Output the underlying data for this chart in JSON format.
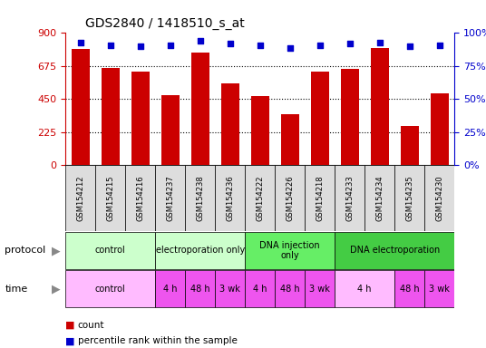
{
  "title": "GDS2840 / 1418510_s_at",
  "samples": [
    "GSM154212",
    "GSM154215",
    "GSM154216",
    "GSM154237",
    "GSM154238",
    "GSM154236",
    "GSM154222",
    "GSM154226",
    "GSM154218",
    "GSM154233",
    "GSM154234",
    "GSM154235",
    "GSM154230"
  ],
  "counts": [
    790,
    660,
    635,
    475,
    770,
    560,
    470,
    350,
    640,
    655,
    800,
    265,
    490
  ],
  "percentiles": [
    93,
    91,
    90,
    91,
    94,
    92,
    91,
    89,
    91,
    92,
    93,
    90,
    91
  ],
  "bar_color": "#cc0000",
  "dot_color": "#0000cc",
  "ylim_left": [
    0,
    900
  ],
  "ylim_right": [
    0,
    100
  ],
  "yticks_left": [
    0,
    225,
    450,
    675,
    900
  ],
  "yticks_right": [
    0,
    25,
    50,
    75,
    100
  ],
  "protocol_groups": [
    {
      "label": "control",
      "start": 0,
      "end": 3,
      "color": "#ccffcc"
    },
    {
      "label": "electroporation only",
      "start": 3,
      "end": 6,
      "color": "#ccffcc"
    },
    {
      "label": "DNA injection\nonly",
      "start": 6,
      "end": 9,
      "color": "#66ee66"
    },
    {
      "label": "DNA electroporation",
      "start": 9,
      "end": 13,
      "color": "#44cc44"
    }
  ],
  "time_groups": [
    {
      "label": "control",
      "start": 0,
      "end": 3,
      "color": "#ffbbff"
    },
    {
      "label": "4 h",
      "start": 3,
      "end": 4,
      "color": "#ee55ee"
    },
    {
      "label": "48 h",
      "start": 4,
      "end": 5,
      "color": "#ee55ee"
    },
    {
      "label": "3 wk",
      "start": 5,
      "end": 6,
      "color": "#ee55ee"
    },
    {
      "label": "4 h",
      "start": 6,
      "end": 7,
      "color": "#ee55ee"
    },
    {
      "label": "48 h",
      "start": 7,
      "end": 8,
      "color": "#ee55ee"
    },
    {
      "label": "3 wk",
      "start": 8,
      "end": 9,
      "color": "#ee55ee"
    },
    {
      "label": "4 h",
      "start": 9,
      "end": 11,
      "color": "#ffbbff"
    },
    {
      "label": "48 h",
      "start": 11,
      "end": 12,
      "color": "#ee55ee"
    },
    {
      "label": "3 wk",
      "start": 12,
      "end": 13,
      "color": "#ee55ee"
    }
  ],
  "bg_color": "#ffffff",
  "grid_color": "#000000",
  "tick_label_color_left": "#cc0000",
  "tick_label_color_right": "#0000cc",
  "xlabel_bg": "#dddddd"
}
